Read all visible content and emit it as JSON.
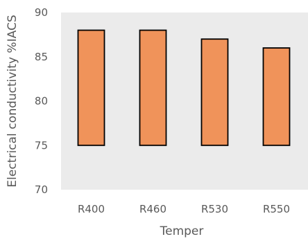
{
  "chart_data": {
    "type": "bar",
    "title": "",
    "xlabel": "Temper",
    "ylabel": "Electrical conductivity  %IACS",
    "categories": [
      "R400",
      "R460",
      "R530",
      "R550"
    ],
    "series": [
      {
        "base": [
          75,
          75,
          75,
          75
        ],
        "values": [
          88,
          88,
          87,
          86
        ]
      }
    ],
    "ylim": [
      70,
      90
    ],
    "yticks": [
      70,
      75,
      80,
      85,
      90
    ],
    "grid": false,
    "legend": "none",
    "colors": {
      "bar_fill": "#F0935A",
      "bar_stroke": "#000000",
      "plot_background": "#EBEBEB",
      "text": "#595959"
    }
  }
}
